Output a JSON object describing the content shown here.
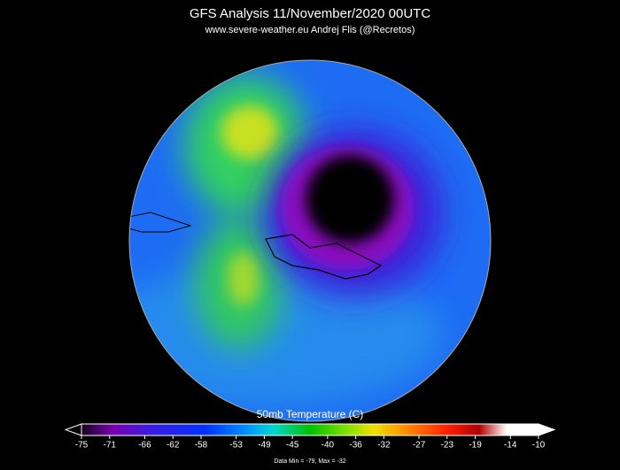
{
  "header": {
    "title": "GFS Analysis  11/November/2020 00UTC",
    "subtitle": "www.severe-weather.eu   Andrej Flis (@Recretos)"
  },
  "colorbar": {
    "label": "50mb Temperature (C)",
    "ticks": [
      -75,
      -71,
      -66,
      -62,
      -58,
      -53,
      -49,
      -45,
      -40,
      -36,
      -32,
      -27,
      -23,
      -19,
      -14,
      -10
    ]
  },
  "footer": "Data Min = -79, Max = -32"
}
